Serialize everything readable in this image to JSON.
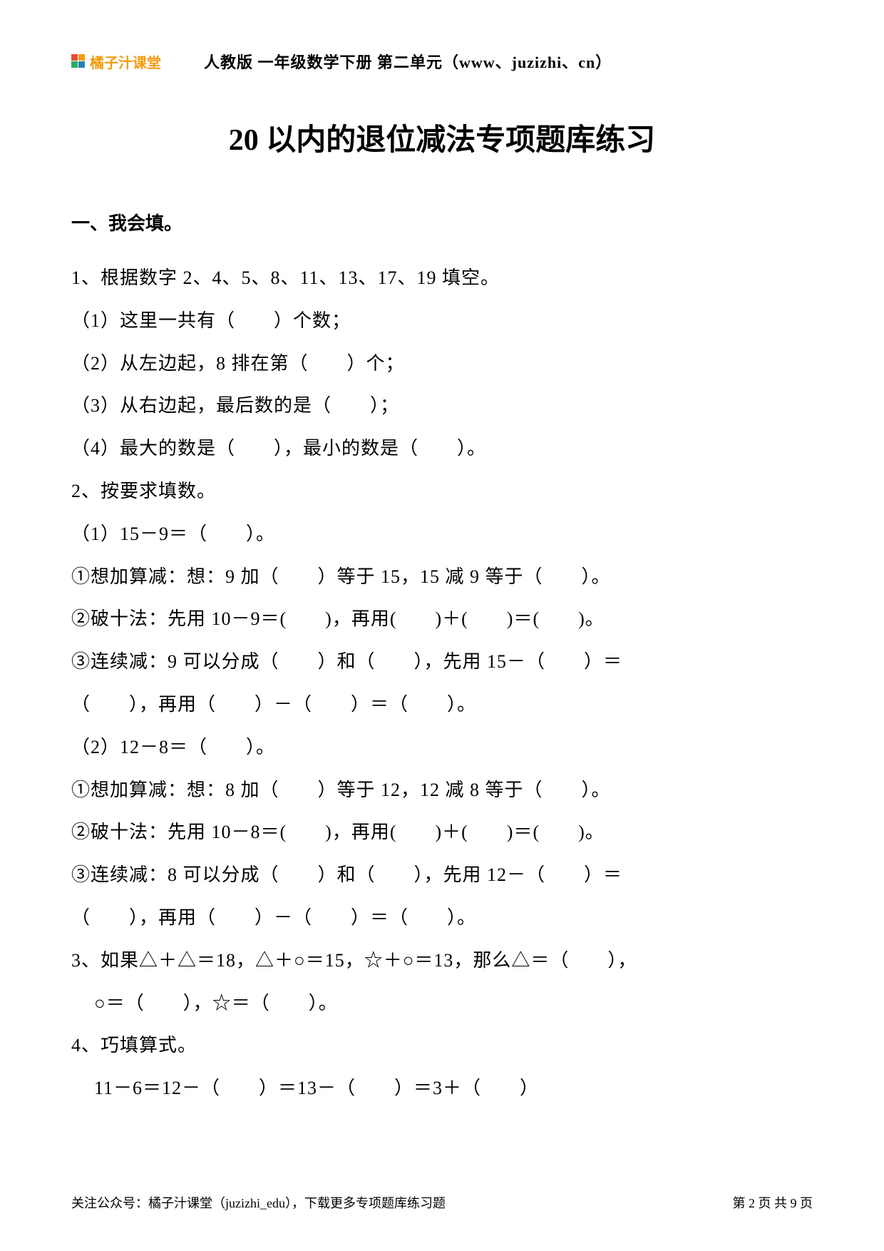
{
  "header": {
    "logo_text": "橘子汁课堂",
    "breadcrumb": "人教版 一年级数学下册 第二单元（www、juzizhi、cn）"
  },
  "title": "20 以内的退位减法专项题库练习",
  "section1": {
    "heading": "一、我会填。",
    "q1": {
      "stem": "1、根据数字 2、4、5、8、11、13、17、19 填空。",
      "p1": "（1）这里一共有（　　）个数；",
      "p2": "（2）从左边起，8 排在第（　　）个；",
      "p3": "（3）从右边起，最后数的是（　　）；",
      "p4": "（4）最大的数是（　　），最小的数是（　　）。"
    },
    "q2": {
      "stem": "2、按要求填数。",
      "p1": "（1）15－9＝（　　）。",
      "p1a": "①想加算减：想：9 加（　　）等于 15，15 减 9 等于（　　）。",
      "p1b": "②破十法：先用 10－9＝(　　)，再用(　　)＋(　　)＝(　　)。",
      "p1c": "③连续减：9 可以分成（　　）和（　　），先用 15－（　　）＝",
      "p1c2": "（　　），再用（　　）－（　　）＝（　　）。",
      "p2": "（2）12－8＝（　　）。",
      "p2a": "①想加算减：想：8 加（　　）等于 12，12 减 8 等于（　　）。",
      "p2b": "②破十法：先用 10－8＝(　　)，再用(　　)＋(　　)＝(　　)。",
      "p2c": "③连续减：8 可以分成（　　）和（　　），先用 12－（　　）＝",
      "p2c2": "（　　），再用（　　）－（　　）＝（　　）。"
    },
    "q3": {
      "line1": "3、如果△＋△＝18，△＋○＝15，☆＋○＝13，那么△＝（　　），",
      "line2": "○＝（　　），☆＝（　　）。"
    },
    "q4": {
      "stem": "4、巧填算式。",
      "line": "11－6＝12－（　　）＝13－（　　）＝3＋（　　）"
    }
  },
  "footer": {
    "left": "关注公众号：橘子汁课堂（juzizhi_edu），下载更多专项题库练习题",
    "right": "第 2 页 共 9 页"
  },
  "colors": {
    "text": "#000000",
    "logo_text": "#f39c12",
    "background": "#ffffff"
  },
  "typography": {
    "title_fontsize": 42,
    "body_fontsize": 26,
    "heading_fontsize": 26,
    "header_fontsize": 22,
    "footer_fontsize": 18,
    "font_family": "SimSun"
  }
}
